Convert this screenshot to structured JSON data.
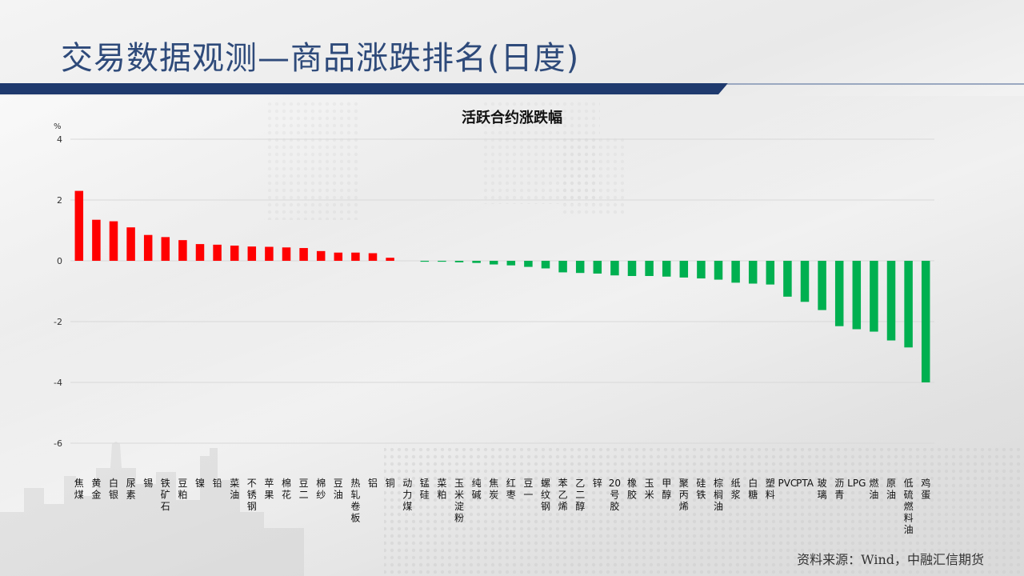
{
  "title": "交易数据观测—商品涨跌排名(日度)",
  "source": "资料来源：Wind，中融汇信期货",
  "colors": {
    "up": "#ff0000",
    "down": "#00b050",
    "title": "#2e4a7a",
    "title_bar": "#1f3a6e"
  },
  "chart_data": {
    "type": "bar",
    "title": "活跃合约涨跌幅",
    "unit": "%",
    "ylim": [
      -6,
      4
    ],
    "yticks": [
      -6,
      -4,
      -2,
      0,
      2,
      4
    ],
    "grid": true,
    "categories": [
      "焦煤",
      "黄金",
      "白银",
      "尿素",
      "锡",
      "铁矿石",
      "豆粕",
      "镍",
      "铅",
      "菜油",
      "不锈钢",
      "苹果",
      "棉花",
      "豆二",
      "棉纱",
      "豆油",
      "热轧卷板",
      "铝",
      "铜",
      "动力煤",
      "锰硅",
      "菜粕",
      "玉米淀粉",
      "纯碱",
      "焦炭",
      "红枣",
      "豆一",
      "螺纹钢",
      "苯乙烯",
      "乙二醇",
      "锌",
      "20号胶",
      "橡胶",
      "玉米",
      "甲醇",
      "聚丙烯",
      "硅铁",
      "棕榈油",
      "纸浆",
      "白糖",
      "塑料",
      "PVC",
      "PTA",
      "玻璃",
      "沥青",
      "LPG",
      "燃油",
      "原油",
      "低硫燃料油",
      "鸡蛋"
    ],
    "values": [
      2.3,
      1.35,
      1.3,
      1.1,
      0.85,
      0.78,
      0.68,
      0.55,
      0.53,
      0.5,
      0.47,
      0.46,
      0.44,
      0.42,
      0.32,
      0.27,
      0.27,
      0.25,
      0.1,
      0.0,
      -0.03,
      -0.03,
      -0.05,
      -0.07,
      -0.12,
      -0.15,
      -0.2,
      -0.25,
      -0.38,
      -0.4,
      -0.42,
      -0.48,
      -0.5,
      -0.5,
      -0.52,
      -0.55,
      -0.58,
      -0.62,
      -0.72,
      -0.75,
      -0.78,
      -1.18,
      -1.35,
      -1.62,
      -2.15,
      -2.25,
      -2.33,
      -2.62,
      -2.85,
      -4.0
    ]
  }
}
